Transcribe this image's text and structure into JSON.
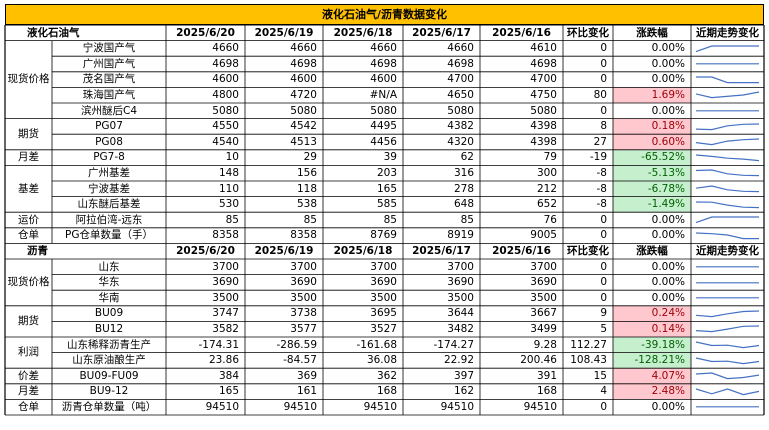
{
  "title": "液化石油气/沥青数据变化",
  "colors": {
    "title_bg": "#FFC000",
    "neg_bg": "#C6EFCE",
    "neg_fg": "#006100",
    "pos_bg": "#FFC7CE",
    "pos_fg": "#9C0006",
    "line": "#000000",
    "spark": "#4472C4"
  },
  "sections": [
    {
      "name": "液化石油气",
      "headers": [
        "2025/6/20",
        "2025/6/19",
        "2025/6/18",
        "2025/6/17",
        "2025/6/16",
        "环比变化",
        "涨跌幅",
        "近期走势变化"
      ],
      "groups": [
        {
          "category": "现货价格",
          "rows": [
            {
              "name": "宁波国产气",
              "values": [
                "4660",
                "4660",
                "4660",
                "4660",
                "4610"
              ],
              "change": "0",
              "pct": "0.00%",
              "pct_sign": 0,
              "trend": [
                4610,
                4660,
                4660,
                4660,
                4660
              ]
            },
            {
              "name": "广州国产气",
              "values": [
                "4698",
                "4698",
                "4698",
                "4698",
                "4698"
              ],
              "change": "0",
              "pct": "0.00%",
              "pct_sign": 0,
              "trend": [
                4698,
                4698,
                4698,
                4698,
                4698
              ]
            },
            {
              "name": "茂名国产气",
              "values": [
                "4600",
                "4600",
                "4600",
                "4700",
                "4700"
              ],
              "change": "0",
              "pct": "0.00%",
              "pct_sign": 0,
              "trend": [
                4700,
                4700,
                4600,
                4600,
                4600
              ]
            },
            {
              "name": "珠海国产气",
              "values": [
                "4800",
                "4720",
                "#N/A",
                "4650",
                "4750"
              ],
              "change": "80",
              "pct": "1.69%",
              "pct_sign": 1,
              "trend": [
                4750,
                4650,
                null,
                4720,
                4800
              ]
            },
            {
              "name": "滨州醚后C4",
              "values": [
                "5080",
                "5080",
                "5080",
                "5080",
                "5080"
              ],
              "change": "0",
              "pct": "0.00%",
              "pct_sign": 0,
              "trend": [
                5080,
                5080,
                5080,
                5080,
                5080
              ]
            }
          ]
        },
        {
          "category": "期货",
          "rows": [
            {
              "name": "PG07",
              "values": [
                "4550",
                "4542",
                "4495",
                "4382",
                "4398"
              ],
              "change": "8",
              "pct": "0.18%",
              "pct_sign": 1,
              "trend": [
                4398,
                4382,
                4495,
                4542,
                4550
              ]
            },
            {
              "name": "PG08",
              "values": [
                "4540",
                "4513",
                "4456",
                "4320",
                "4398"
              ],
              "change": "27",
              "pct": "0.60%",
              "pct_sign": 1,
              "trend": [
                4398,
                4320,
                4456,
                4513,
                4540
              ]
            }
          ]
        },
        {
          "category": "月差",
          "rows": [
            {
              "name": "PG7-8",
              "values": [
                "10",
                "29",
                "39",
                "62",
                "79"
              ],
              "change": "-19",
              "pct": "-65.52%",
              "pct_sign": -1,
              "trend": [
                79,
                62,
                39,
                29,
                10
              ]
            }
          ]
        },
        {
          "category": "基差",
          "rows": [
            {
              "name": "广州基差",
              "values": [
                "148",
                "156",
                "203",
                "316",
                "300"
              ],
              "change": "-8",
              "pct": "-5.13%",
              "pct_sign": -1,
              "trend": [
                300,
                316,
                203,
                156,
                148
              ]
            },
            {
              "name": "宁波基差",
              "values": [
                "110",
                "118",
                "165",
                "278",
                "212"
              ],
              "change": "-8",
              "pct": "-6.78%",
              "pct_sign": -1,
              "trend": [
                212,
                278,
                165,
                118,
                110
              ]
            },
            {
              "name": "山东醚后基差",
              "values": [
                "530",
                "538",
                "585",
                "648",
                "652"
              ],
              "change": "-8",
              "pct": "-1.49%",
              "pct_sign": -1,
              "trend": [
                652,
                648,
                585,
                538,
                530
              ]
            }
          ]
        },
        {
          "category": "运价",
          "rows": [
            {
              "name": "阿拉伯湾-远东",
              "values": [
                "85",
                "85",
                "85",
                "85",
                "76"
              ],
              "change": "0",
              "pct": "0.00%",
              "pct_sign": 0,
              "trend": [
                76,
                85,
                85,
                85,
                85
              ]
            }
          ]
        },
        {
          "category": "仓单",
          "rows": [
            {
              "name": "PG仓单数量（手）",
              "values": [
                "8358",
                "8358",
                "8769",
                "8919",
                "9005"
              ],
              "change": "0",
              "pct": "0.00%",
              "pct_sign": 0,
              "trend": [
                9005,
                8919,
                8769,
                8358,
                8358
              ]
            }
          ]
        }
      ]
    },
    {
      "name": "沥青",
      "headers": [
        "2025/6/20",
        "2025/6/19",
        "2025/6/18",
        "2025/6/17",
        "2025/6/16",
        "环比变化",
        "涨跌幅",
        "近期走势变化"
      ],
      "groups": [
        {
          "category": "现货价格",
          "rows": [
            {
              "name": "山东",
              "values": [
                "3700",
                "3700",
                "3700",
                "3700",
                "3700"
              ],
              "change": "0",
              "pct": "0.00%",
              "pct_sign": 0,
              "trend": [
                3700,
                3700,
                3700,
                3700,
                3700
              ]
            },
            {
              "name": "华东",
              "values": [
                "3690",
                "3690",
                "3690",
                "3690",
                "3690"
              ],
              "change": "0",
              "pct": "0.00%",
              "pct_sign": 0,
              "trend": [
                3690,
                3690,
                3690,
                3690,
                3690
              ]
            },
            {
              "name": "华南",
              "values": [
                "3500",
                "3500",
                "3500",
                "3500",
                "3500"
              ],
              "change": "0",
              "pct": "0.00%",
              "pct_sign": 0,
              "trend": [
                3500,
                3500,
                3500,
                3500,
                3500
              ]
            }
          ]
        },
        {
          "category": "期货",
          "rows": [
            {
              "name": "BU09",
              "values": [
                "3747",
                "3738",
                "3695",
                "3644",
                "3667"
              ],
              "change": "9",
              "pct": "0.24%",
              "pct_sign": 1,
              "trend": [
                3667,
                3644,
                3695,
                3738,
                3747
              ]
            },
            {
              "name": "BU12",
              "values": [
                "3582",
                "3577",
                "3527",
                "3482",
                "3499"
              ],
              "change": "5",
              "pct": "0.14%",
              "pct_sign": 1,
              "trend": [
                3499,
                3482,
                3527,
                3577,
                3582
              ]
            }
          ]
        },
        {
          "category": "利润",
          "rows": [
            {
              "name": "山东稀释沥青生产",
              "values": [
                "-174.31",
                "-286.59",
                "-161.68",
                "-174.27",
                "9.28"
              ],
              "change": "112.27",
              "pct": "-39.18%",
              "pct_sign": -1,
              "trend": [
                9.28,
                -174.27,
                -161.68,
                -286.59,
                -174.31
              ]
            },
            {
              "name": "山东原油酿生产",
              "values": [
                "23.86",
                "-84.57",
                "36.08",
                "22.92",
                "200.46"
              ],
              "change": "108.43",
              "pct": "-128.21%",
              "pct_sign": -1,
              "trend": [
                200.46,
                22.92,
                36.08,
                -84.57,
                23.86
              ]
            }
          ]
        },
        {
          "category": "价差",
          "rows": [
            {
              "name": "BU09-FU09",
              "values": [
                "384",
                "369",
                "362",
                "397",
                "391"
              ],
              "change": "15",
              "pct": "4.07%",
              "pct_sign": 1,
              "trend": [
                391,
                397,
                362,
                369,
                384
              ]
            }
          ]
        },
        {
          "category": "月差",
          "rows": [
            {
              "name": "BU9-12",
              "values": [
                "165",
                "161",
                "168",
                "162",
                "168"
              ],
              "change": "4",
              "pct": "2.48%",
              "pct_sign": 1,
              "trend": [
                168,
                162,
                168,
                161,
                165
              ]
            }
          ]
        },
        {
          "category": "仓单",
          "rows": [
            {
              "name": "沥青仓单数量（吨）",
              "values": [
                "94510",
                "94510",
                "94510",
                "94510",
                "94510"
              ],
              "change": "0",
              "pct": "0.00%",
              "pct_sign": 0,
              "trend": [
                94510,
                94510,
                94510,
                94510,
                94510
              ]
            }
          ]
        }
      ]
    }
  ]
}
